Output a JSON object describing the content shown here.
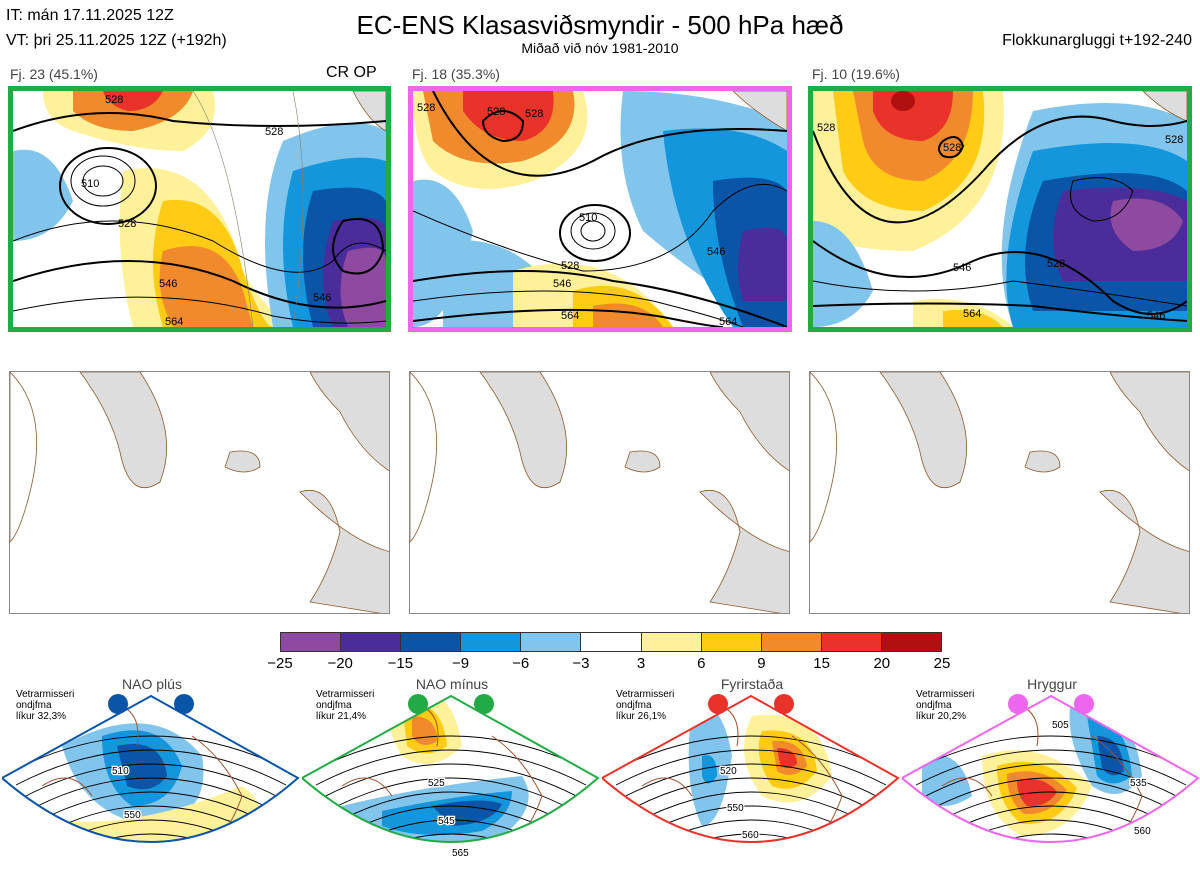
{
  "header": {
    "it_line": "IT: mán 17.11.2025 12Z",
    "vt_line": "VT: þri 25.11.2025 12Z  (+192h)",
    "title": "EC-ENS Klasasviðsmyndir - 500 hPa hæð",
    "subtitle": "Miðað við nóv 1981-2010",
    "window": "Flokkunargluggi t+192-240"
  },
  "clusters": [
    {
      "label": "Fj. 23 (45.1%)",
      "tag": "CR OP",
      "frame_color": "#22aa44",
      "contours": [
        "528",
        "510",
        "528",
        "528",
        "546",
        "546",
        "564"
      ]
    },
    {
      "label": "Fj. 18 (35.3%)",
      "tag": "",
      "frame_color": "#ee66ee",
      "contours": [
        "528",
        "528",
        "528",
        "510",
        "528",
        "546",
        "546",
        "564",
        "564"
      ]
    },
    {
      "label": "Fj. 10 (19.6%)",
      "tag": "",
      "frame_color": "#22aa44",
      "contours": [
        "528",
        "528",
        "528",
        "528",
        "546",
        "546",
        "564"
      ]
    }
  ],
  "colorbar": {
    "colors": [
      "#8e4aa0",
      "#4a2d9a",
      "#0a55a8",
      "#1496dc",
      "#82c5ec",
      "#ffffff",
      "#fff19a",
      "#ffcb14",
      "#f08a2c",
      "#e8322a",
      "#b01010"
    ],
    "ticks": [
      "−25",
      "−20",
      "−15",
      "−9",
      "−6",
      "−3",
      "3",
      "6",
      "9",
      "15",
      "20",
      "25"
    ]
  },
  "regimes": [
    {
      "name": "NAO plús",
      "info": [
        "Vetrarmisseri",
        "ondjfma",
        "líkur 32,3%"
      ],
      "color": "#0a55a8",
      "contours": [
        "510",
        "550"
      ]
    },
    {
      "name": "NAO mínus",
      "info": [
        "Vetrarmisseri",
        "ondjfma",
        "líkur 21,4%"
      ],
      "color": "#22aa44",
      "contours": [
        "525",
        "545",
        "565"
      ]
    },
    {
      "name": "Fyrirstaða",
      "info": [
        "Vetrarmisseri",
        "ondjfma",
        "líkur 26,1%"
      ],
      "color": "#e8322a",
      "contours": [
        "520",
        "550",
        "560"
      ]
    },
    {
      "name": "Hryggur",
      "info": [
        "Vetrarmisseri",
        "ondjfma",
        "líkur 20,2%"
      ],
      "color": "#ee66ee",
      "contours": [
        "505",
        "535",
        "560"
      ]
    }
  ]
}
